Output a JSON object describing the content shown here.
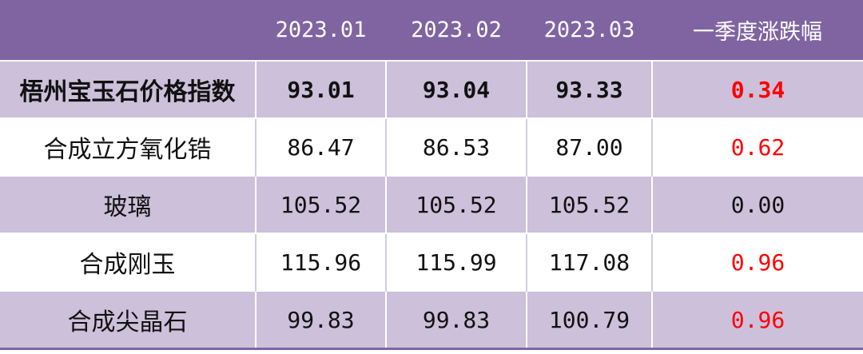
{
  "table": {
    "headers": [
      "",
      "2023.01",
      "2023.02",
      "2023.03",
      "一季度涨跌幅"
    ],
    "rows": [
      {
        "name": "梧州宝玉石价格指数",
        "values": [
          "93.01",
          "93.04",
          "93.33"
        ],
        "change": "0.34",
        "change_color": "#ff0000",
        "shaded": true,
        "bold": true
      },
      {
        "name": "合成立方氧化锆",
        "values": [
          "86.47",
          "86.53",
          "87.00"
        ],
        "change": "0.62",
        "change_color": "#ff0000",
        "shaded": false,
        "bold": false
      },
      {
        "name": "玻璃",
        "values": [
          "105.52",
          "105.52",
          "105.52"
        ],
        "change": "0.00",
        "change_color": "#111111",
        "shaded": true,
        "bold": false
      },
      {
        "name": "合成刚玉",
        "values": [
          "115.96",
          "115.99",
          "117.08"
        ],
        "change": "0.96",
        "change_color": "#ff0000",
        "shaded": false,
        "bold": false
      },
      {
        "name": "合成尖晶石",
        "values": [
          "99.83",
          "99.83",
          "100.79"
        ],
        "change": "0.96",
        "change_color": "#ff0000",
        "shaded": true,
        "bold": false
      }
    ]
  },
  "colors": {
    "header_bg": "#8064a2",
    "shaded_row_bg": "#ccc0da",
    "positive_change": "#ff0000"
  }
}
